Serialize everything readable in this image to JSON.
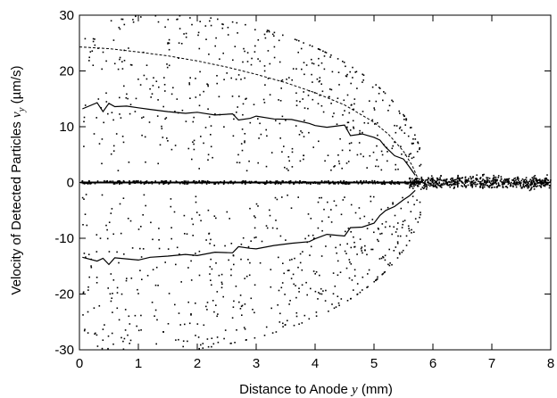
{
  "chart_data": {
    "type": "scatter",
    "title": "",
    "xlabel": {
      "prefix": "Distance to Anode ",
      "var": "y",
      "suffix": " (mm)"
    },
    "ylabel": {
      "prefix": "Velocity of Detected Particles ",
      "var": "v",
      "sub": "y",
      "suffix": " (µm/s)"
    },
    "xlim": [
      0,
      8
    ],
    "ylim": [
      -30,
      30
    ],
    "xticks": [
      "0",
      "1",
      "2",
      "3",
      "4",
      "5",
      "6",
      "7",
      "8"
    ],
    "yticks": [
      "-30",
      "-20",
      "-10",
      "0",
      "10",
      "20",
      "30"
    ],
    "grid": false,
    "legend": "none",
    "series": [
      {
        "kind": "dashed-line",
        "x": [
          0.0,
          0.5,
          1.0,
          1.5,
          2.0,
          2.5,
          3.0,
          3.5,
          4.0,
          4.5,
          5.0,
          5.25,
          5.5,
          5.65,
          5.75
        ],
        "y": [
          24.3,
          24.0,
          23.4,
          22.7,
          21.8,
          20.7,
          19.4,
          17.9,
          16.1,
          13.9,
          10.8,
          8.6,
          5.6,
          3.0,
          0.6
        ]
      },
      {
        "kind": "solid-step-line",
        "x": [
          0.05,
          0.3,
          0.4,
          0.5,
          0.6,
          0.8,
          1.0,
          1.2,
          1.5,
          1.8,
          2.0,
          2.3,
          2.6,
          2.7,
          2.9,
          3.0,
          3.3,
          3.6,
          3.9,
          4.0,
          4.2,
          4.5,
          4.6,
          4.8,
          5.0,
          5.1,
          5.2,
          5.35,
          5.5,
          5.6,
          5.7
        ],
        "y": [
          13.2,
          14.3,
          12.7,
          14.2,
          13.6,
          13.7,
          13.4,
          13.1,
          12.7,
          12.4,
          12.6,
          12.1,
          12.3,
          11.2,
          11.5,
          11.9,
          11.4,
          11.3,
          10.6,
          10.2,
          9.9,
          10.3,
          8.4,
          8.7,
          8.1,
          7.6,
          6.3,
          4.8,
          4.2,
          2.8,
          1.3
        ]
      },
      {
        "kind": "solid-step-line",
        "x": [
          0.05,
          0.3,
          0.4,
          0.5,
          0.6,
          0.8,
          1.0,
          1.2,
          1.5,
          1.8,
          2.0,
          2.3,
          2.6,
          2.7,
          2.9,
          3.0,
          3.3,
          3.6,
          3.9,
          4.0,
          4.2,
          4.5,
          4.6,
          4.8,
          5.0,
          5.1,
          5.2,
          5.35,
          5.5,
          5.6,
          5.7
        ],
        "y": [
          -13.4,
          -14.1,
          -13.6,
          -14.7,
          -13.5,
          -13.7,
          -13.9,
          -13.4,
          -13.2,
          -12.9,
          -13.1,
          -12.5,
          -12.6,
          -11.5,
          -11.8,
          -11.9,
          -11.3,
          -10.9,
          -10.6,
          -10.1,
          -9.3,
          -9.6,
          -8.1,
          -8.0,
          -7.3,
          -5.9,
          -5.0,
          -4.3,
          -3.1,
          -2.4,
          -1.4
        ]
      },
      {
        "kind": "scatter-dots",
        "generator": "dense cloud of detected-particle velocities: envelope approx ±30 µm/s near anode narrowing to ~0 at 5.8 mm, tight band within ±1 µm/s from 5.8 to 8 mm, dense line of points at 0"
      }
    ]
  }
}
